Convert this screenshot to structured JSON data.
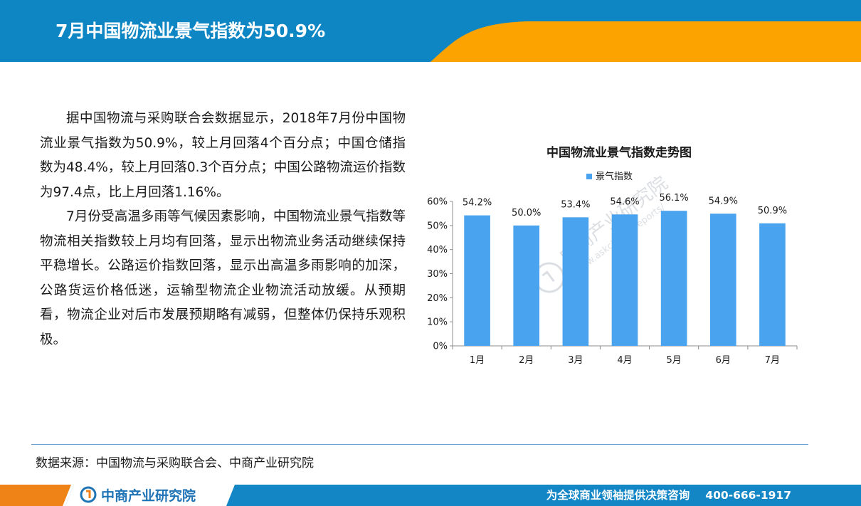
{
  "header": {
    "title": "7月中国物流业景气指数为50.9%"
  },
  "body": {
    "paragraphs": [
      "据中国物流与采购联合会数据显示，2018年7月份中国物流业景气指数为50.9%，较上月回落4个百分点；中国仓储指数为48.4%，较上月回落0.3个百分点；中国公路物流运价指数为97.4点，比上月回落1.16%。",
      "7月份受高温多雨等气候因素影响，中国物流业景气指数等物流相关指数较上月均有回落，显示出物流业务活动继续保持平稳增长。公路运价指数回落，显示出高温多雨影响的加深，公路货运价格低迷，运输型物流企业物流活动放缓。从预期看，物流企业对后市发展预期略有减弱，但整体仍保持乐观积极。"
    ]
  },
  "chart_data": {
    "type": "bar",
    "title": "中国物流业景气指数走势图",
    "categories": [
      "1月",
      "2月",
      "3月",
      "4月",
      "5月",
      "6月",
      "7月"
    ],
    "series": [
      {
        "name": "景气指数",
        "values": [
          54.2,
          50.0,
          53.4,
          54.6,
          56.1,
          54.9,
          50.9
        ]
      }
    ],
    "data_labels": [
      "54.2%",
      "50.0%",
      "53.4%",
      "54.6%",
      "56.1%",
      "54.9%",
      "50.9%"
    ],
    "yticks": [
      "0%",
      "10%",
      "20%",
      "30%",
      "40%",
      "50%",
      "60%"
    ],
    "ylim": [
      0,
      60
    ],
    "legend_position": "top-center",
    "grid": false,
    "bar_color": "#4aa3ee"
  },
  "watermark": {
    "text": "中商产业研究院",
    "url": "www.askci.com/reports/"
  },
  "source": {
    "text": "数据来源：中国物流与采购联合会、中商产业研究院"
  },
  "footer": {
    "logo_text": "中商产业研究院",
    "slogan": "为全球商业领袖提供决策咨询",
    "phone": "400-666-1917"
  },
  "colors": {
    "header_blue": "#0e86c4",
    "accent_orange": "#fda300",
    "footer_blue": "#1386c6",
    "footer_orange": "#f08318"
  }
}
